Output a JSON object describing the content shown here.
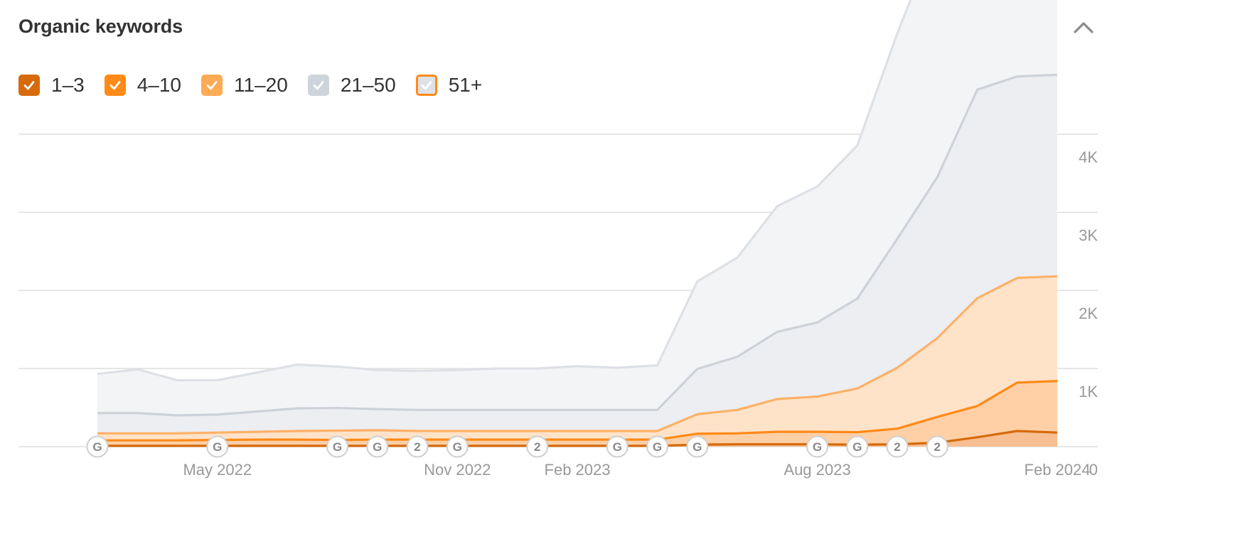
{
  "header": {
    "title": "Organic keywords"
  },
  "colors": {
    "pos_1_3": "#d66a0c",
    "pos_4_10": "#ff8a18",
    "pos_11_20": "#ffaa55",
    "pos_21_50": "#ced4dc",
    "pos_51_plus": "#dee2e8"
  },
  "chart_data": {
    "type": "area",
    "stacked": true,
    "x": [
      "2022-02",
      "2022-03",
      "2022-04",
      "2022-05",
      "2022-06",
      "2022-07",
      "2022-08",
      "2022-09",
      "2022-10",
      "2022-11",
      "2022-12",
      "2023-01",
      "2023-02",
      "2023-03",
      "2023-04",
      "2023-05",
      "2023-06",
      "2023-07",
      "2023-08",
      "2023-09",
      "2023-10",
      "2023-11",
      "2023-12",
      "2024-01",
      "2024-02"
    ],
    "x_tick_labels": [
      {
        "label": "May 2022",
        "x": "2022-05"
      },
      {
        "label": "Nov 2022",
        "x": "2022-11"
      },
      {
        "label": "Feb 2023",
        "x": "2023-02"
      },
      {
        "label": "Aug 2023",
        "x": "2023-08"
      },
      {
        "label": "Feb 2024",
        "x": "2024-02"
      }
    ],
    "y_ticks": [
      {
        "label": "0",
        "value": 0
      },
      {
        "label": "1K",
        "value": 1000
      },
      {
        "label": "2K",
        "value": 2000
      },
      {
        "label": "3K",
        "value": 3000
      },
      {
        "label": "4K",
        "value": 4000
      }
    ],
    "ylim": [
      0,
      4000
    ],
    "grid": true,
    "legend_position": "top-left",
    "series": [
      {
        "name": "1–3",
        "key": "pos_1_3",
        "checked": true,
        "values": [
          10,
          10,
          10,
          10,
          10,
          10,
          10,
          10,
          10,
          10,
          10,
          10,
          10,
          10,
          10,
          25,
          30,
          30,
          30,
          25,
          30,
          50,
          120,
          200,
          180
        ]
      },
      {
        "name": "4–10",
        "key": "pos_4_10",
        "checked": true,
        "values": [
          70,
          70,
          70,
          75,
          80,
          80,
          75,
          80,
          80,
          80,
          80,
          80,
          80,
          80,
          80,
          140,
          140,
          160,
          160,
          160,
          200,
          330,
          400,
          620,
          660
        ]
      },
      {
        "name": "11–20",
        "key": "pos_11_20",
        "checked": true,
        "values": [
          90,
          90,
          90,
          95,
          100,
          110,
          120,
          120,
          110,
          110,
          110,
          110,
          110,
          110,
          110,
          250,
          300,
          420,
          450,
          560,
          780,
          1010,
          1380,
          1340,
          1340
        ]
      },
      {
        "name": "21–50",
        "key": "pos_21_50",
        "checked": true,
        "values": [
          260,
          260,
          230,
          230,
          260,
          290,
          290,
          270,
          270,
          270,
          270,
          270,
          270,
          270,
          270,
          580,
          680,
          860,
          950,
          1150,
          1650,
          2060,
          2670,
          2580,
          2580
        ]
      },
      {
        "name": "51+",
        "key": "pos_51_plus",
        "checked": true,
        "values": [
          500,
          560,
          450,
          440,
          500,
          560,
          530,
          500,
          500,
          510,
          530,
          530,
          560,
          540,
          570,
          1120,
          1270,
          1610,
          1740,
          1960,
          2630,
          3130,
          4000,
          3900,
          3900
        ]
      }
    ],
    "annotations": [
      {
        "label": "G",
        "x": "2022-02"
      },
      {
        "label": "G",
        "x": "2022-05"
      },
      {
        "label": "G",
        "x": "2022-08"
      },
      {
        "label": "G",
        "x": "2022-09"
      },
      {
        "label": "2",
        "x": "2022-10"
      },
      {
        "label": "G",
        "x": "2022-11"
      },
      {
        "label": "2",
        "x": "2023-01"
      },
      {
        "label": "G",
        "x": "2023-03"
      },
      {
        "label": "G",
        "x": "2023-04"
      },
      {
        "label": "G",
        "x": "2023-05"
      },
      {
        "label": "G",
        "x": "2023-08"
      },
      {
        "label": "G",
        "x": "2023-09"
      },
      {
        "label": "2",
        "x": "2023-10"
      },
      {
        "label": "2",
        "x": "2023-11"
      }
    ]
  }
}
